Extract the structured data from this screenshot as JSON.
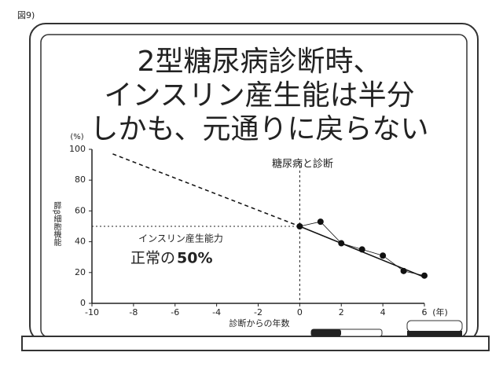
{
  "figure_label": "図9)",
  "chart_data": {
    "type": "line",
    "title_lines": [
      "2型糖尿病診断時、",
      "インスリン産生能は半分",
      "しかも、元通りに戻らない"
    ],
    "y_label": "膵β細胞機能",
    "y_unit": "(%)",
    "x_label": "診断からの年数",
    "x_unit": "(年)",
    "xlim": [
      -10,
      6
    ],
    "xticks": [
      -10,
      -8,
      -6,
      -4,
      -2,
      0,
      2,
      4,
      6
    ],
    "ylim": [
      0,
      100
    ],
    "yticks": [
      0,
      20,
      40,
      60,
      80,
      100
    ],
    "vline": 0,
    "vline_label": "糖尿病と診断",
    "hline": 50,
    "hline_label": "インスリン産生能力",
    "hline_note": [
      "正常の",
      "50%"
    ],
    "color": "#111111",
    "series": [
      {
        "style": "markers",
        "x": [
          0,
          1,
          2,
          3,
          4,
          5,
          6
        ],
        "values": [
          50,
          53,
          39,
          35,
          31,
          21,
          18
        ]
      },
      {
        "style": "dashed",
        "x": [
          -9,
          0
        ],
        "values": [
          97,
          50
        ]
      },
      {
        "style": "solid",
        "x": [
          0,
          6
        ],
        "values": [
          50,
          17
        ]
      }
    ]
  }
}
